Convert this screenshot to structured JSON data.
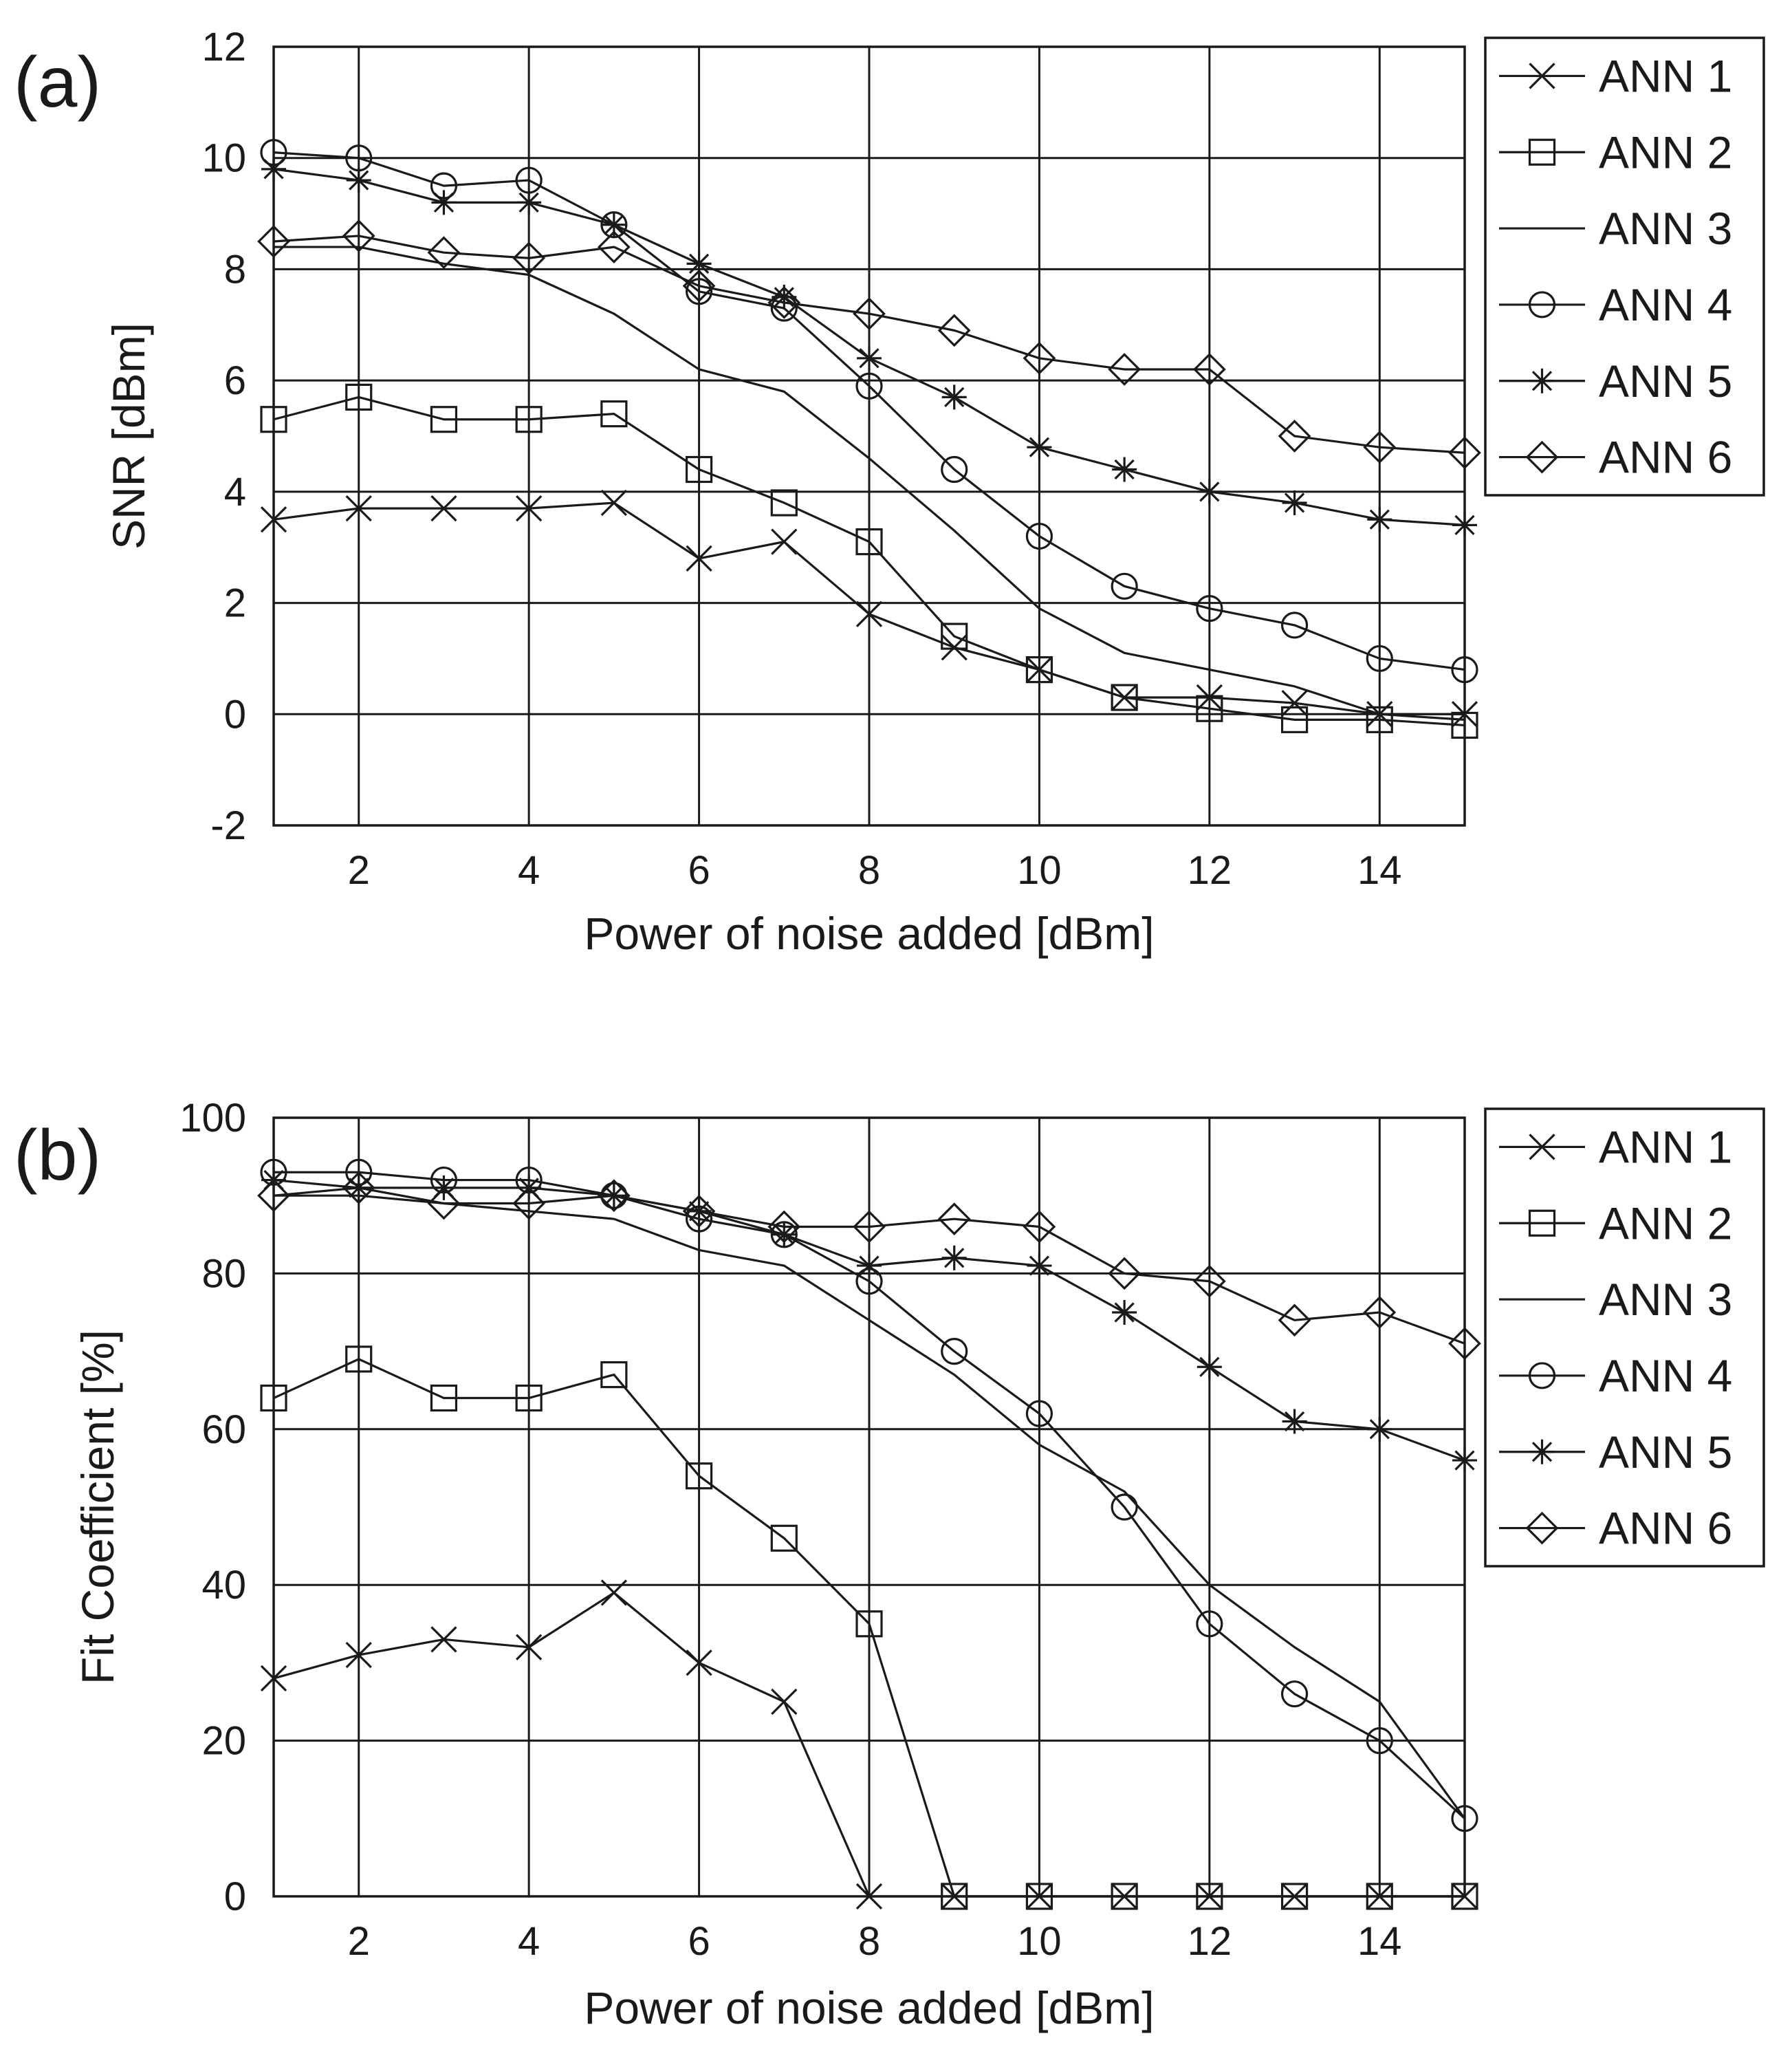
{
  "chart_data": [
    {
      "type": "line",
      "panel_label": "(a)",
      "xlabel": "Power of noise added [dBm]",
      "ylabel": "SNR [dBm]",
      "xlim": [
        1,
        15
      ],
      "ylim": [
        -2,
        12
      ],
      "xticks": [
        2,
        4,
        6,
        8,
        10,
        12,
        14
      ],
      "yticks": [
        -2,
        0,
        2,
        4,
        6,
        8,
        10,
        12
      ],
      "grid": true,
      "legend_position": "right",
      "x": [
        1,
        2,
        3,
        4,
        5,
        6,
        7,
        8,
        9,
        10,
        11,
        12,
        13,
        14,
        15
      ],
      "series": [
        {
          "name": "ANN 1",
          "marker": "x",
          "values": [
            3.5,
            3.7,
            3.7,
            3.7,
            3.8,
            2.8,
            3.1,
            1.8,
            1.2,
            0.8,
            0.3,
            0.3,
            0.2,
            0.0,
            0.0
          ]
        },
        {
          "name": "ANN 2",
          "marker": "square",
          "values": [
            5.3,
            5.7,
            5.3,
            5.3,
            5.4,
            4.4,
            3.8,
            3.1,
            1.4,
            0.8,
            0.3,
            0.1,
            -0.1,
            -0.1,
            -0.2
          ]
        },
        {
          "name": "ANN 3",
          "marker": "none",
          "values": [
            8.4,
            8.4,
            8.1,
            7.9,
            7.2,
            6.2,
            5.8,
            4.6,
            3.3,
            1.9,
            1.1,
            0.8,
            0.5,
            0.0,
            -0.1
          ]
        },
        {
          "name": "ANN 4",
          "marker": "circle",
          "values": [
            10.1,
            10.0,
            9.5,
            9.6,
            8.8,
            7.6,
            7.3,
            5.9,
            4.4,
            3.2,
            2.3,
            1.9,
            1.6,
            1.0,
            0.8
          ]
        },
        {
          "name": "ANN 5",
          "marker": "star",
          "values": [
            9.8,
            9.6,
            9.2,
            9.2,
            8.8,
            8.1,
            7.5,
            6.4,
            5.7,
            4.8,
            4.4,
            4.0,
            3.8,
            3.5,
            3.4
          ]
        },
        {
          "name": "ANN 6",
          "marker": "diamond",
          "values": [
            8.5,
            8.6,
            8.3,
            8.2,
            8.4,
            7.7,
            7.4,
            7.2,
            6.9,
            6.4,
            6.2,
            6.2,
            5.0,
            4.8,
            4.7
          ]
        }
      ]
    },
    {
      "type": "line",
      "panel_label": "(b)",
      "xlabel": "Power of noise added [dBm]",
      "ylabel": "Fit Coefficient [%]",
      "xlim": [
        1,
        15
      ],
      "ylim": [
        0,
        100
      ],
      "xticks": [
        2,
        4,
        6,
        8,
        10,
        12,
        14
      ],
      "yticks": [
        0,
        20,
        40,
        60,
        80,
        100
      ],
      "grid": true,
      "legend_position": "right",
      "x": [
        1,
        2,
        3,
        4,
        5,
        6,
        7,
        8,
        9,
        10,
        11,
        12,
        13,
        14,
        15
      ],
      "series": [
        {
          "name": "ANN 1",
          "marker": "x",
          "values": [
            28,
            31,
            33,
            32,
            39,
            30,
            25,
            0,
            0,
            0,
            0,
            0,
            0,
            0,
            0
          ]
        },
        {
          "name": "ANN 2",
          "marker": "square",
          "values": [
            64,
            69,
            64,
            64,
            67,
            54,
            46,
            35,
            0,
            0,
            0,
            0,
            0,
            0,
            0
          ]
        },
        {
          "name": "ANN 3",
          "marker": "none",
          "values": [
            90,
            90,
            89,
            88,
            87,
            83,
            81,
            74,
            67,
            58,
            52,
            40,
            32,
            25,
            10
          ]
        },
        {
          "name": "ANN 4",
          "marker": "circle",
          "values": [
            93,
            93,
            92,
            92,
            90,
            87,
            85,
            79,
            70,
            62,
            50,
            35,
            26,
            20,
            10
          ]
        },
        {
          "name": "ANN 5",
          "marker": "star",
          "values": [
            92,
            91,
            91,
            91,
            90,
            88,
            85,
            81,
            82,
            81,
            75,
            68,
            61,
            60,
            56
          ]
        },
        {
          "name": "ANN 6",
          "marker": "diamond",
          "values": [
            90,
            91,
            89,
            89,
            90,
            88,
            86,
            86,
            87,
            86,
            80,
            79,
            74,
            75,
            71
          ]
        }
      ]
    }
  ]
}
